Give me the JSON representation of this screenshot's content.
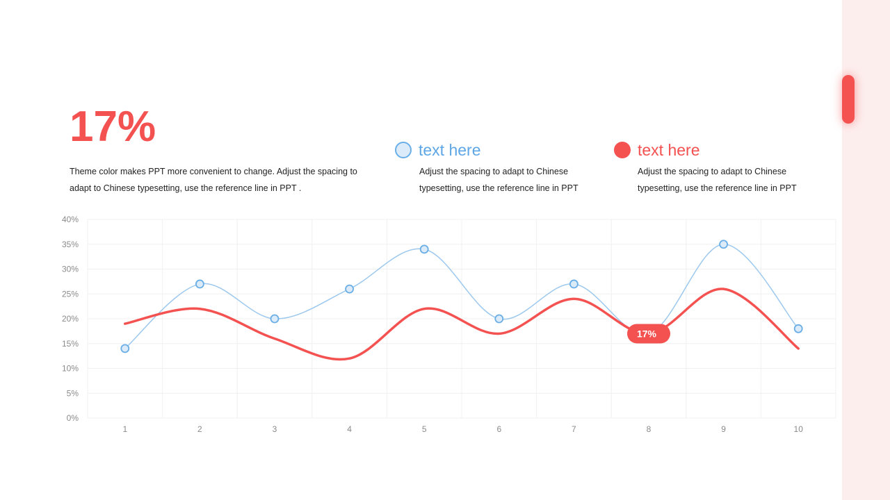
{
  "headline": {
    "value": "17%",
    "description": "Theme color makes PPT more convenient to change. Adjust the spacing to adapt to Chinese typesetting, use the reference line in PPT ."
  },
  "legend": [
    {
      "label": "text here",
      "description": "Adjust the spacing to adapt to Chinese typesetting, use the reference line in PPT",
      "color": "#5ea6e6"
    },
    {
      "label": "text here",
      "description": "Adjust the spacing to adapt to Chinese typesetting, use the reference line in PPT",
      "color": "#f45151"
    }
  ],
  "chart_data": {
    "type": "line",
    "x": [
      1,
      2,
      3,
      4,
      5,
      6,
      7,
      8,
      9,
      10
    ],
    "yticks": [
      "0%",
      "5%",
      "10%",
      "15%",
      "20%",
      "25%",
      "30%",
      "35%",
      "40%"
    ],
    "ylim": [
      0,
      40
    ],
    "grid": true,
    "series": [
      {
        "values": [
          14,
          27,
          20,
          26,
          34,
          20,
          27,
          17,
          35,
          18
        ],
        "color": "#6aaee6",
        "markers": true,
        "smooth": true
      },
      {
        "values": [
          19,
          22,
          16,
          12,
          22,
          17,
          24,
          17,
          26,
          14
        ],
        "color": "#f45151",
        "markers": false,
        "smooth": true
      }
    ],
    "annotation": {
      "x": 8,
      "value": 17,
      "label": "17%"
    }
  }
}
